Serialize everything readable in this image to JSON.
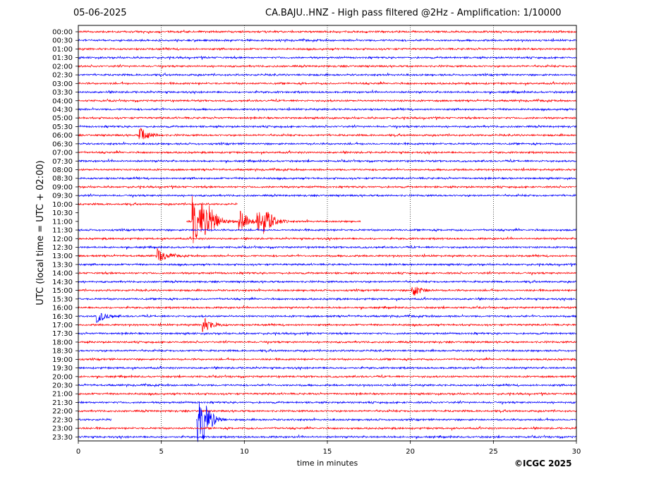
{
  "header": {
    "date": "05-06-2025",
    "title": "CA.BAJU..HNZ - High pass filtered @2Hz - Amplification: 1/10000"
  },
  "footer": {
    "copyright": "©ICGC 2025"
  },
  "chart_data": {
    "type": "line",
    "title": "CA.BAJU..HNZ - High pass filtered @2Hz - Amplification: 1/10000",
    "xlabel": "time in minutes",
    "ylabel": "UTC (local time = UTC + 02:00)",
    "xlim": [
      0,
      30
    ],
    "x_ticks": [
      0,
      5,
      10,
      15,
      20,
      25,
      30
    ],
    "vertical_gridlines": [
      5,
      10,
      15,
      20,
      25
    ],
    "grid": "dotted vertical",
    "row_labels": [
      "00:00",
      "00:30",
      "01:00",
      "01:30",
      "02:00",
      "02:30",
      "03:00",
      "03:30",
      "04:00",
      "04:30",
      "05:00",
      "05:30",
      "06:00",
      "06:30",
      "07:00",
      "07:30",
      "08:00",
      "08:30",
      "09:00",
      "09:30",
      "10:00",
      "10:30",
      "11:00",
      "11:30",
      "12:00",
      "12:30",
      "13:00",
      "13:30",
      "14:00",
      "14:30",
      "15:00",
      "15:30",
      "16:00",
      "16:30",
      "17:00",
      "17:30",
      "18:00",
      "18:30",
      "19:00",
      "19:30",
      "20:00",
      "20:30",
      "21:00",
      "21:30",
      "22:00",
      "22:30",
      "23:00",
      "23:30"
    ],
    "colors": {
      "even_rows": "#ff0000",
      "odd_rows": "#0000ff"
    },
    "data_gaps": [
      {
        "row": "10:00",
        "start_min": 9.6,
        "end_min": 30
      },
      {
        "row": "10:30",
        "start_min": 0,
        "end_min": 30
      },
      {
        "row": "11:00",
        "start_min": 0,
        "end_min": 6.5
      },
      {
        "row": "11:00",
        "start_min": 17,
        "end_min": 30
      },
      {
        "row": "22:30",
        "start_min": 2,
        "end_min": 7.1
      }
    ],
    "events": [
      {
        "row": "06:00",
        "minute": 3.7,
        "amplitude": 0.9
      },
      {
        "row": "11:00",
        "minute": 6.9,
        "amplitude": 3.0
      },
      {
        "row": "11:00",
        "minute": 7.4,
        "amplitude": 1.6
      },
      {
        "row": "11:00",
        "minute": 7.9,
        "amplitude": 1.5
      },
      {
        "row": "11:00",
        "minute": 9.7,
        "amplitude": 1.4
      },
      {
        "row": "11:00",
        "minute": 10.8,
        "amplitude": 1.2
      },
      {
        "row": "11:00",
        "minute": 11.2,
        "amplitude": 1.4
      },
      {
        "row": "13:00",
        "minute": 4.8,
        "amplitude": 0.8
      },
      {
        "row": "15:00",
        "minute": 20.1,
        "amplitude": 0.8
      },
      {
        "row": "16:30",
        "minute": 1.1,
        "amplitude": 0.8
      },
      {
        "row": "17:00",
        "minute": 7.5,
        "amplitude": 0.9
      },
      {
        "row": "22:30",
        "minute": 7.2,
        "amplitude": 2.6
      },
      {
        "row": "22:30",
        "minute": 7.5,
        "amplitude": 1.2
      }
    ]
  }
}
